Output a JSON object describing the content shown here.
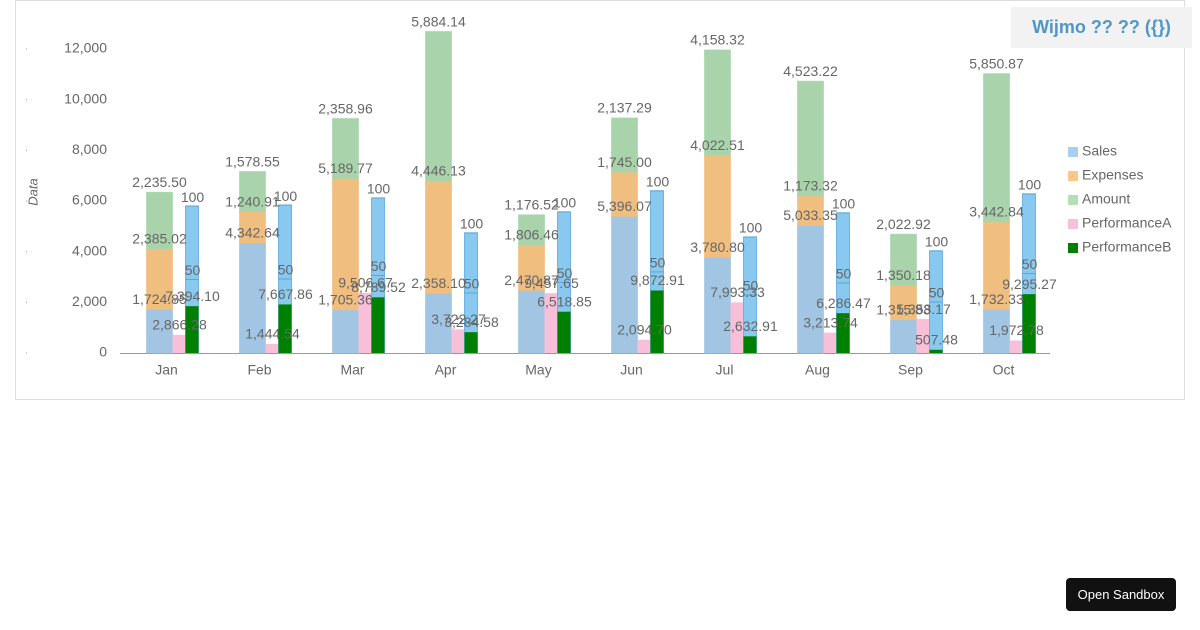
{
  "header": {
    "title": "Wijmo ?? ?? ({})"
  },
  "button": "Open Sandbox",
  "chart_data": {
    "type": "bar",
    "stacked": true,
    "y_label": "Data",
    "categories": [
      "Jan",
      "Feb",
      "Mar",
      "Apr",
      "May",
      "Jun",
      "Jul",
      "Aug",
      "Sep",
      "Oct"
    ],
    "ylim": [
      0,
      12750
    ],
    "yticks": [
      0,
      {
        "value": 2000,
        "label": "2,000"
      },
      {
        "value": 4000,
        "label": "4,000"
      },
      {
        "value": 6000,
        "label": "6,000"
      },
      {
        "value": 8000,
        "label": "8,000"
      },
      {
        "value": 10000,
        "label": "10,000"
      },
      {
        "value": 12000,
        "label": "12,000"
      }
    ],
    "y2lim": [
      0,
      51000
    ],
    "series": [
      {
        "name": "Sales",
        "color": "#a9cfee",
        "values": [
          1724.85,
          4342.64,
          1705.36,
          2358.1,
          2470.87,
          5396.07,
          3780.8,
          5033.35,
          1315.83,
          1732.33
        ],
        "value_labels": [
          "1,724.85",
          "4,342.64",
          "1,705.36",
          "2,358.10",
          "2,470.87",
          "5,396.07",
          "3,780.80",
          "5,033.35",
          "1,315.83",
          "1,732.33"
        ]
      },
      {
        "name": "Expenses",
        "color": "#fdc886",
        "values": [
          2385.02,
          1240.91,
          5189.77,
          4446.13,
          1806.46,
          1745.0,
          4022.51,
          1173.32,
          1350.18,
          3442.84
        ],
        "value_labels": [
          "2,385.02",
          "1,240.91",
          "5,189.77",
          "4,446.13",
          "1,806.46",
          "1,745.00",
          "4,022.51",
          "1,173.32",
          "1,350.18",
          "3,442.84"
        ]
      },
      {
        "name": "Amount",
        "color": "#b2dfb4",
        "values": [
          2235.5,
          1578.55,
          2358.96,
          5884.14,
          1176.52,
          2137.29,
          4158.32,
          4523.22,
          2022.92,
          5850.87
        ],
        "value_labels": [
          "2,235.50",
          "1,578.55",
          "2,358.96",
          "5,884.14",
          "1,176.52",
          "2,137.29",
          "4,158.32",
          "4,523.22",
          "2,022.92",
          "5,850.87"
        ]
      },
      {
        "name": "PerformanceA",
        "color": "#f8bfd8",
        "axis": "y2",
        "values": [
          2866.28,
          1444.54,
          9506.67,
          3722.27,
          9457.65,
          2094.7,
          7993.33,
          3213.74,
          5358.17,
          1972.78
        ],
        "value_labels": [
          "2,866.28",
          "1,444.54",
          "9,506.67",
          "3,722.27",
          "9,457.65",
          "2,094.70",
          "7,993.33",
          "3,213.74",
          "5,358.17",
          "1,972.78"
        ]
      },
      {
        "name": "PerformanceB",
        "color": "#008000",
        "axis": "y2",
        "values": [
          7394.1,
          7667.86,
          8789.52,
          3284.58,
          6518.85,
          9872.91,
          2632.91,
          6286.47,
          507.48,
          9295.27
        ],
        "value_labels": [
          "7,394.10",
          "7,667.86",
          "8,789.52",
          "3,284.58",
          "6,518.85",
          "9,872.91",
          "2,632.91",
          "6,286.47",
          "507.48",
          "9,295.27"
        ]
      }
    ],
    "overlay": {
      "color": "#8ac9ef",
      "values": [
        5800,
        5840,
        6120,
        4740,
        5570,
        6400,
        4580,
        5530,
        4030,
        6280
      ],
      "labels": [
        50,
        100
      ]
    }
  }
}
